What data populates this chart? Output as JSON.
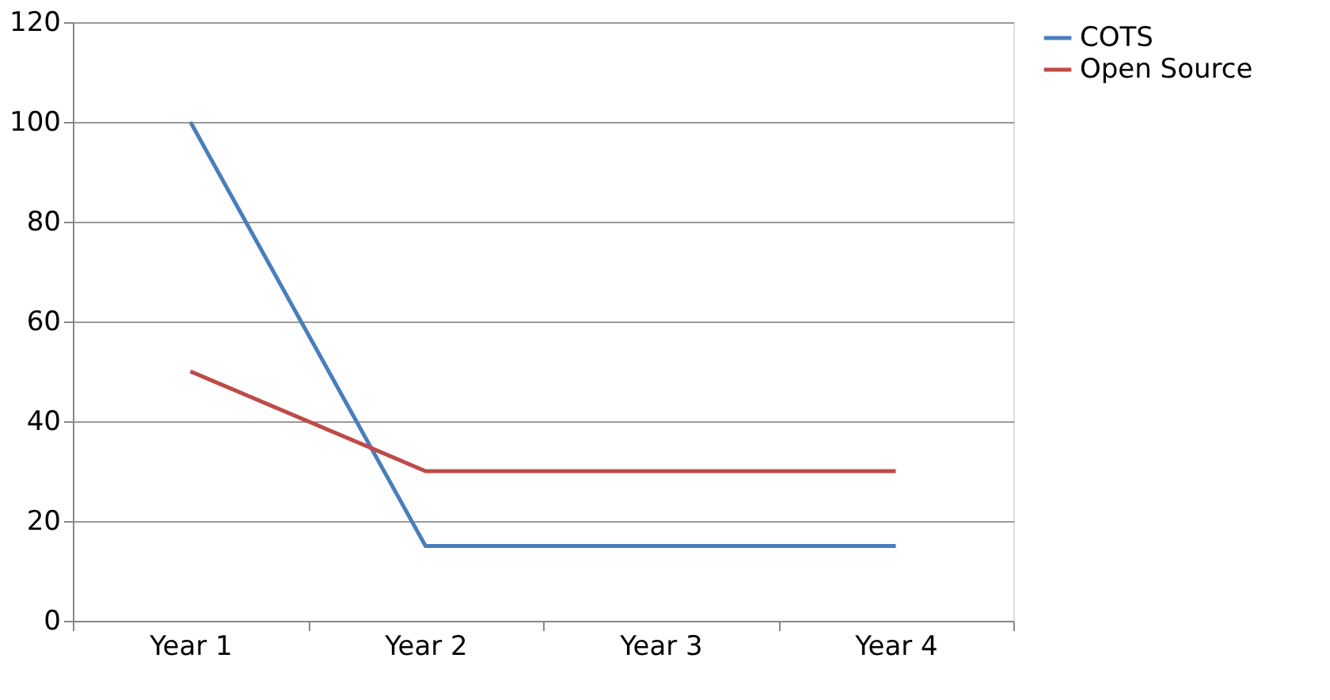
{
  "chart_data": {
    "type": "line",
    "categories": [
      "Year 1",
      "Year 2",
      "Year 3",
      "Year 4"
    ],
    "series": [
      {
        "name": "COTS",
        "color": "#4a7ebb",
        "values": [
          100,
          15,
          15,
          15
        ]
      },
      {
        "name": "Open Source",
        "color": "#be4b48",
        "values": [
          50,
          30,
          30,
          30
        ]
      }
    ],
    "ylim": [
      0,
      120
    ],
    "yticks": [
      0,
      20,
      40,
      60,
      80,
      100,
      120
    ],
    "grid": "y",
    "legend": "right",
    "marker": "none",
    "line_style": "solid"
  }
}
